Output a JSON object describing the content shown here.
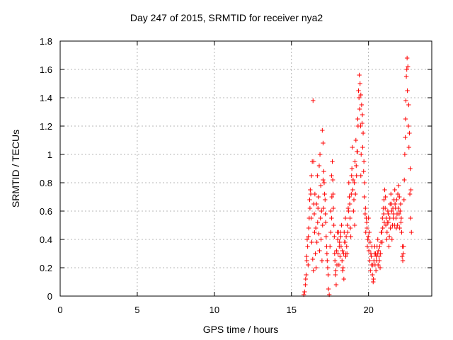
{
  "chart_data": {
    "type": "scatter",
    "title": "Day 247 of 2015, SRMTID for receiver nya2",
    "xlabel": "GPS time / hours",
    "ylabel": "SRMTID / TECUs",
    "xlim": [
      0,
      24.1
    ],
    "ylim": [
      0,
      1.8
    ],
    "xticks": [
      "0",
      "5",
      "10",
      "15",
      "20"
    ],
    "xtick_values": [
      0,
      5,
      10,
      15,
      20
    ],
    "yticks": [
      "0",
      "0.2",
      "0.4",
      "0.6",
      "0.8",
      "1",
      "1.2",
      "1.4",
      "1.6",
      "1.8"
    ],
    "ytick_values": [
      0,
      0.2,
      0.4,
      0.6,
      0.8,
      1.0,
      1.2,
      1.4,
      1.6,
      1.8
    ],
    "grid": true,
    "marker": "+",
    "color": "#ff0000",
    "series": [
      {
        "points": [
          [
            15.8,
            0.01
          ],
          [
            15.85,
            0.03
          ],
          [
            15.9,
            0.08
          ],
          [
            15.95,
            0.15
          ],
          [
            16.0,
            0.25
          ],
          [
            16.05,
            0.35
          ],
          [
            16.1,
            0.42
          ],
          [
            16.15,
            0.55
          ],
          [
            16.2,
            0.62
          ],
          [
            16.25,
            0.72
          ],
          [
            16.3,
            0.85
          ],
          [
            16.35,
            0.95
          ],
          [
            16.4,
            1.38
          ],
          [
            16.45,
            0.65
          ],
          [
            16.5,
            0.45
          ],
          [
            16.55,
            0.3
          ],
          [
            16.6,
            0.2
          ],
          [
            16.65,
            0.38
          ],
          [
            16.7,
            0.52
          ],
          [
            16.75,
            0.7
          ],
          [
            16.8,
            0.92
          ],
          [
            16.85,
            1.0
          ],
          [
            16.9,
            0.78
          ],
          [
            16.95,
            0.6
          ],
          [
            17.0,
            1.17
          ],
          [
            17.05,
            1.08
          ],
          [
            17.1,
            0.88
          ],
          [
            17.15,
            0.72
          ],
          [
            17.2,
            0.58
          ],
          [
            17.25,
            0.42
          ],
          [
            17.3,
            0.3
          ],
          [
            17.35,
            0.2
          ],
          [
            17.4,
            0.05
          ],
          [
            17.45,
            0.01
          ],
          [
            17.5,
            0.35
          ],
          [
            17.55,
            0.6
          ],
          [
            17.6,
            0.85
          ],
          [
            17.65,
            0.95
          ],
          [
            17.7,
            0.72
          ],
          [
            17.75,
            0.5
          ],
          [
            17.8,
            0.3
          ],
          [
            17.85,
            0.15
          ],
          [
            17.9,
            0.08
          ],
          [
            17.95,
            0.22
          ],
          [
            18.0,
            0.4
          ],
          [
            18.05,
            0.45
          ],
          [
            18.1,
            0.35
          ],
          [
            18.15,
            0.28
          ],
          [
            18.2,
            0.42
          ],
          [
            18.25,
            0.5
          ],
          [
            18.3,
            0.32
          ],
          [
            18.35,
            0.2
          ],
          [
            18.4,
            0.12
          ],
          [
            18.45,
            0.38
          ],
          [
            18.5,
            0.55
          ],
          [
            18.55,
            0.42
          ],
          [
            18.6,
            0.3
          ],
          [
            18.65,
            0.45
          ],
          [
            18.7,
            0.6
          ],
          [
            18.75,
            0.7
          ],
          [
            18.8,
            0.55
          ],
          [
            18.85,
            0.42
          ],
          [
            18.9,
            0.85
          ],
          [
            18.95,
            1.05
          ],
          [
            19.0,
            0.82
          ],
          [
            19.05,
            0.68
          ],
          [
            19.1,
            0.5
          ],
          [
            19.15,
            0.72
          ],
          [
            19.2,
            0.92
          ],
          [
            19.25,
            1.02
          ],
          [
            19.3,
            1.25
          ],
          [
            19.35,
            1.45
          ],
          [
            19.4,
            1.56
          ],
          [
            19.45,
            1.5
          ],
          [
            19.5,
            1.42
          ],
          [
            19.55,
            1.35
          ],
          [
            19.6,
            1.28
          ],
          [
            19.65,
            1.15
          ],
          [
            19.7,
            0.95
          ],
          [
            19.75,
            0.8
          ],
          [
            19.8,
            0.62
          ],
          [
            19.85,
            0.55
          ],
          [
            19.9,
            0.48
          ],
          [
            19.95,
            0.4
          ],
          [
            20.0,
            0.55
          ],
          [
            20.05,
            0.45
          ],
          [
            20.1,
            0.38
          ],
          [
            20.15,
            0.3
          ],
          [
            20.2,
            0.22
          ],
          [
            20.25,
            0.15
          ],
          [
            20.3,
            0.1
          ],
          [
            20.35,
            0.25
          ],
          [
            20.4,
            0.35
          ],
          [
            20.45,
            0.3
          ],
          [
            20.5,
            0.28
          ],
          [
            20.55,
            0.35
          ],
          [
            20.6,
            0.4
          ],
          [
            20.65,
            0.32
          ],
          [
            20.7,
            0.25
          ],
          [
            20.75,
            0.2
          ],
          [
            20.8,
            0.38
          ],
          [
            20.85,
            0.45
          ],
          [
            20.9,
            0.55
          ],
          [
            20.95,
            0.62
          ],
          [
            21.0,
            0.68
          ],
          [
            21.05,
            0.75
          ],
          [
            21.1,
            0.7
          ],
          [
            21.15,
            0.55
          ],
          [
            21.2,
            0.45
          ],
          [
            21.25,
            0.6
          ],
          [
            21.3,
            0.52
          ],
          [
            21.35,
            0.42
          ],
          [
            21.4,
            0.65
          ],
          [
            21.45,
            0.72
          ],
          [
            21.5,
            0.6
          ],
          [
            21.55,
            0.5
          ],
          [
            21.6,
            0.55
          ],
          [
            21.65,
            0.68
          ],
          [
            21.7,
            0.75
          ],
          [
            21.75,
            0.62
          ],
          [
            21.8,
            0.48
          ],
          [
            21.85,
            0.58
          ],
          [
            21.9,
            0.72
          ],
          [
            21.95,
            0.78
          ],
          [
            22.0,
            0.7
          ],
          [
            22.05,
            0.6
          ],
          [
            22.1,
            0.52
          ],
          [
            22.15,
            0.45
          ],
          [
            22.2,
            0.35
          ],
          [
            22.25,
            0.3
          ],
          [
            22.3,
            0.68
          ],
          [
            22.35,
            1.0
          ],
          [
            22.4,
            1.25
          ],
          [
            22.45,
            1.55
          ],
          [
            22.5,
            1.68
          ],
          [
            22.55,
            1.62
          ],
          [
            22.6,
            1.35
          ],
          [
            22.65,
            1.15
          ],
          [
            22.7,
            0.9
          ],
          [
            22.75,
            0.75
          ],
          [
            15.92,
            0.12
          ],
          [
            15.98,
            0.28
          ],
          [
            16.02,
            0.4
          ],
          [
            16.08,
            0.22
          ],
          [
            16.12,
            0.48
          ],
          [
            16.18,
            0.68
          ],
          [
            16.22,
            0.75
          ],
          [
            16.28,
            0.55
          ],
          [
            16.32,
            0.38
          ],
          [
            16.38,
            0.26
          ],
          [
            16.42,
            0.18
          ],
          [
            16.48,
            0.58
          ],
          [
            16.52,
            0.72
          ],
          [
            16.58,
            0.48
          ],
          [
            16.62,
            0.65
          ],
          [
            16.68,
            0.85
          ],
          [
            16.72,
            0.62
          ],
          [
            16.78,
            0.44
          ],
          [
            16.82,
            0.32
          ],
          [
            16.88,
            0.55
          ],
          [
            16.92,
            0.4
          ],
          [
            16.98,
            0.25
          ],
          [
            17.02,
            0.5
          ],
          [
            17.08,
            0.62
          ],
          [
            17.12,
            0.8
          ],
          [
            17.18,
            0.68
          ],
          [
            17.22,
            0.52
          ],
          [
            17.28,
            0.35
          ],
          [
            17.32,
            0.25
          ],
          [
            17.38,
            0.15
          ],
          [
            17.55,
            0.45
          ],
          [
            17.62,
            0.7
          ],
          [
            17.68,
            0.82
          ],
          [
            17.72,
            0.62
          ],
          [
            17.78,
            0.42
          ],
          [
            17.82,
            0.25
          ],
          [
            17.88,
            0.18
          ],
          [
            17.92,
            0.32
          ],
          [
            17.98,
            0.45
          ],
          [
            18.02,
            0.3
          ],
          [
            18.08,
            0.22
          ],
          [
            18.12,
            0.38
          ],
          [
            18.18,
            0.45
          ],
          [
            18.22,
            0.35
          ],
          [
            18.28,
            0.25
          ],
          [
            18.32,
            0.18
          ],
          [
            18.38,
            0.3
          ],
          [
            18.42,
            0.45
          ],
          [
            18.48,
            0.38
          ],
          [
            18.52,
            0.28
          ],
          [
            18.58,
            0.35
          ],
          [
            18.62,
            0.5
          ],
          [
            18.68,
            0.62
          ],
          [
            18.72,
            0.8
          ],
          [
            18.78,
            0.65
          ],
          [
            18.82,
            0.48
          ],
          [
            18.88,
            0.72
          ],
          [
            18.92,
            0.9
          ],
          [
            18.98,
            0.75
          ],
          [
            19.02,
            0.6
          ],
          [
            19.08,
            0.8
          ],
          [
            19.12,
            0.95
          ],
          [
            19.18,
            1.1
          ],
          [
            19.22,
            0.85
          ],
          [
            19.28,
            1.02
          ],
          [
            19.32,
            1.2
          ],
          [
            19.38,
            1.4
          ],
          [
            19.42,
            1.32
          ],
          [
            19.48,
            1.2
          ],
          [
            19.52,
            1.0
          ],
          [
            19.58,
            1.22
          ],
          [
            19.62,
            1.05
          ],
          [
            19.68,
            0.88
          ],
          [
            19.72,
            0.7
          ],
          [
            19.78,
            0.58
          ],
          [
            19.82,
            0.45
          ],
          [
            19.88,
            0.52
          ],
          [
            19.92,
            0.35
          ],
          [
            19.98,
            0.42
          ],
          [
            20.02,
            0.32
          ],
          [
            20.08,
            0.25
          ],
          [
            20.12,
            0.18
          ],
          [
            20.18,
            0.28
          ],
          [
            20.22,
            0.35
          ],
          [
            20.28,
            0.22
          ],
          [
            20.32,
            0.12
          ],
          [
            20.38,
            0.3
          ],
          [
            20.42,
            0.22
          ],
          [
            20.48,
            0.18
          ],
          [
            20.52,
            0.25
          ],
          [
            20.58,
            0.3
          ],
          [
            20.62,
            0.22
          ],
          [
            20.68,
            0.28
          ],
          [
            20.72,
            0.35
          ],
          [
            20.78,
            0.3
          ],
          [
            20.82,
            0.45
          ],
          [
            20.88,
            0.38
          ],
          [
            20.92,
            0.48
          ],
          [
            20.98,
            0.58
          ],
          [
            21.02,
            0.52
          ],
          [
            21.08,
            0.62
          ],
          [
            21.12,
            0.5
          ],
          [
            21.18,
            0.4
          ],
          [
            21.22,
            0.52
          ],
          [
            21.28,
            0.58
          ],
          [
            21.32,
            0.35
          ],
          [
            21.38,
            0.55
          ],
          [
            21.42,
            0.48
          ],
          [
            21.48,
            0.65
          ],
          [
            21.52,
            0.4
          ],
          [
            21.58,
            0.62
          ],
          [
            21.62,
            0.58
          ],
          [
            21.68,
            0.5
          ],
          [
            21.72,
            0.65
          ],
          [
            21.78,
            0.55
          ],
          [
            21.82,
            0.68
          ],
          [
            21.88,
            0.5
          ],
          [
            21.92,
            0.62
          ],
          [
            21.98,
            0.58
          ],
          [
            22.02,
            0.48
          ],
          [
            22.08,
            0.65
          ],
          [
            22.12,
            0.55
          ],
          [
            22.18,
            0.28
          ],
          [
            22.22,
            0.25
          ],
          [
            22.28,
            0.35
          ],
          [
            22.32,
            0.82
          ],
          [
            22.38,
            1.12
          ],
          [
            22.42,
            1.38
          ],
          [
            22.48,
            1.6
          ],
          [
            22.52,
            1.45
          ],
          [
            22.58,
            1.2
          ],
          [
            22.62,
            1.05
          ],
          [
            22.68,
            0.72
          ],
          [
            22.72,
            0.55
          ],
          [
            22.78,
            0.45
          ],
          [
            16.45,
            0.95
          ],
          [
            17.05,
            0.82
          ],
          [
            17.6,
            0.55
          ],
          [
            18.5,
            0.3
          ],
          [
            19.5,
            0.85
          ]
        ]
      }
    ]
  }
}
